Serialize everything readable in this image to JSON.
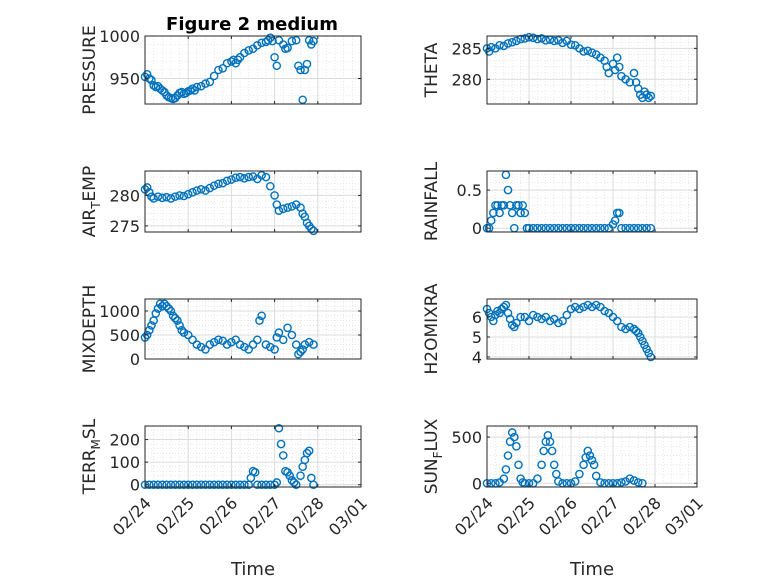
{
  "figure": {
    "title": "Figure 2 medium"
  },
  "chart_data": [
    {
      "type": "scatter",
      "panel": "top-left",
      "ylabel": "PRESSURE",
      "xlabel": "",
      "ylim": [
        920,
        1000
      ],
      "yticks": [
        950,
        1000
      ],
      "ytick_labels": [
        "950",
        "1000"
      ],
      "xlim": [
        0,
        5
      ],
      "xticks": [
        0,
        1,
        2,
        3,
        4,
        5
      ],
      "xtick_labels": [
        "02/24",
        "02/25",
        "02/26",
        "02/27",
        "02/28",
        "03/01"
      ],
      "x": [
        0,
        0.05,
        0.1,
        0.15,
        0.2,
        0.25,
        0.3,
        0.35,
        0.4,
        0.45,
        0.5,
        0.55,
        0.6,
        0.65,
        0.7,
        0.75,
        0.8,
        0.85,
        0.9,
        0.95,
        1.0,
        1.05,
        1.1,
        1.15,
        1.2,
        1.3,
        1.4,
        1.5,
        1.6,
        1.7,
        1.8,
        1.9,
        2.0,
        2.05,
        2.1,
        2.15,
        2.2,
        2.3,
        2.4,
        2.5,
        2.6,
        2.7,
        2.8,
        2.85,
        2.9,
        2.95,
        3.0,
        3.05,
        3.1,
        3.2,
        3.25,
        3.3,
        3.4,
        3.5,
        3.55,
        3.6,
        3.65,
        3.7,
        3.75,
        3.8,
        3.85,
        3.9
      ],
      "y": [
        952,
        955,
        950,
        948,
        942,
        940,
        941,
        938,
        936,
        934,
        930,
        928,
        927,
        926,
        927,
        930,
        933,
        934,
        932,
        933,
        935,
        936,
        938,
        936,
        940,
        941,
        944,
        946,
        953,
        960,
        962,
        968,
        970,
        972,
        968,
        972,
        975,
        980,
        983,
        985,
        989,
        992,
        993,
        995,
        998,
        994,
        975,
        965,
        995,
        990,
        985,
        986,
        994,
        995,
        965,
        960,
        925,
        960,
        967,
        995,
        990,
        994
      ]
    },
    {
      "type": "scatter",
      "panel": "top-right",
      "ylabel": "THETA",
      "xlabel": "",
      "ylim": [
        276,
        287
      ],
      "yticks": [
        280,
        285
      ],
      "ytick_labels": [
        "280",
        "285"
      ],
      "xlim": [
        0,
        5
      ],
      "xticks": [
        0,
        1,
        2,
        3,
        4,
        5
      ],
      "xtick_labels": [
        "02/24",
        "02/25",
        "02/26",
        "02/27",
        "02/28",
        "03/01"
      ],
      "x": [
        0,
        0.05,
        0.1,
        0.2,
        0.3,
        0.4,
        0.5,
        0.6,
        0.7,
        0.8,
        0.9,
        1.0,
        1.1,
        1.2,
        1.3,
        1.4,
        1.5,
        1.6,
        1.7,
        1.8,
        1.9,
        2.0,
        2.1,
        2.2,
        2.3,
        2.4,
        2.5,
        2.6,
        2.7,
        2.8,
        2.85,
        2.9,
        3.0,
        3.05,
        3.1,
        3.15,
        3.2,
        3.3,
        3.4,
        3.5,
        3.55,
        3.6,
        3.65,
        3.7,
        3.75,
        3.8,
        3.85,
        3.9
      ],
      "y": [
        285.0,
        284.5,
        285.2,
        285.0,
        285.5,
        285.4,
        285.8,
        286.0,
        286.2,
        286.5,
        286.6,
        286.8,
        286.7,
        286.5,
        286.6,
        286.3,
        286.4,
        286.2,
        286.3,
        285.9,
        286.2,
        285.6,
        285.5,
        285.0,
        284.5,
        284.6,
        284.3,
        284.0,
        283.5,
        283.0,
        282.0,
        281.0,
        282.5,
        281.5,
        283.5,
        282.0,
        280.5,
        280.0,
        279.5,
        281.0,
        279.5,
        278.5,
        277.5,
        277.0,
        278.0,
        277.5,
        277.0,
        277.3
      ]
    },
    {
      "type": "scatter",
      "panel": "middle-left",
      "ylabel": "AIR_TEMP",
      "xlabel": "",
      "ylim": [
        274,
        284
      ],
      "yticks": [
        275,
        280
      ],
      "ytick_labels": [
        "275",
        "280"
      ],
      "xlim": [
        0,
        5
      ],
      "xticks": [
        0,
        1,
        2,
        3,
        4,
        5
      ],
      "xtick_labels": [
        "02/24",
        "02/25",
        "02/26",
        "02/27",
        "02/28",
        "03/01"
      ],
      "x": [
        0,
        0.05,
        0.1,
        0.15,
        0.2,
        0.3,
        0.4,
        0.5,
        0.6,
        0.7,
        0.8,
        0.9,
        1.0,
        1.1,
        1.2,
        1.3,
        1.4,
        1.5,
        1.6,
        1.7,
        1.8,
        1.9,
        2.0,
        2.1,
        2.2,
        2.3,
        2.4,
        2.5,
        2.6,
        2.7,
        2.8,
        2.9,
        3.0,
        3.05,
        3.1,
        3.2,
        3.3,
        3.4,
        3.5,
        3.6,
        3.65,
        3.7,
        3.75,
        3.8,
        3.85,
        3.9
      ],
      "y": [
        281.0,
        281.3,
        280.5,
        279.8,
        279.5,
        279.8,
        279.6,
        279.7,
        279.5,
        279.8,
        280.0,
        279.9,
        280.2,
        280.5,
        280.8,
        281.0,
        280.8,
        281.2,
        281.6,
        281.9,
        282.0,
        282.4,
        282.6,
        282.9,
        283.0,
        282.8,
        283.0,
        283.1,
        282.7,
        283.3,
        283.0,
        281.5,
        280.0,
        278.5,
        277.5,
        277.8,
        278.0,
        278.2,
        278.5,
        278.0,
        277.0,
        276.5,
        275.5,
        275.0,
        274.5,
        274.2
      ]
    },
    {
      "type": "scatter",
      "panel": "middle-right",
      "ylabel": "RAINFALL",
      "xlabel": "",
      "ylim": [
        -0.05,
        0.75
      ],
      "yticks": [
        0,
        0.5
      ],
      "ytick_labels": [
        "0",
        "0.5"
      ],
      "xlim": [
        0,
        5
      ],
      "xticks": [
        0,
        1,
        2,
        3,
        4,
        5
      ],
      "xtick_labels": [
        "02/24",
        "02/25",
        "02/26",
        "02/27",
        "02/28",
        "03/01"
      ],
      "x": [
        0,
        0.05,
        0.1,
        0.15,
        0.2,
        0.25,
        0.3,
        0.35,
        0.4,
        0.45,
        0.5,
        0.55,
        0.6,
        0.65,
        0.7,
        0.75,
        0.8,
        0.85,
        0.9,
        0.95,
        1.0,
        1.1,
        1.2,
        1.3,
        1.4,
        1.5,
        1.6,
        1.7,
        1.8,
        1.9,
        2.0,
        2.1,
        2.2,
        2.3,
        2.4,
        2.5,
        2.6,
        2.7,
        2.8,
        2.9,
        3.0,
        3.05,
        3.1,
        3.15,
        3.2,
        3.3,
        3.4,
        3.5,
        3.6,
        3.7,
        3.8,
        3.9
      ],
      "y": [
        0,
        0,
        0.1,
        0.2,
        0.3,
        0.3,
        0.2,
        0.3,
        0.3,
        0.7,
        0.5,
        0.3,
        0.2,
        0,
        0.3,
        0.3,
        0.2,
        0.3,
        0.2,
        0,
        0,
        0,
        0,
        0,
        0,
        0,
        0,
        0,
        0,
        0,
        0,
        0,
        0,
        0,
        0,
        0,
        0,
        0,
        0,
        0,
        0.05,
        0.1,
        0.2,
        0.2,
        0,
        0,
        0,
        0,
        0,
        0,
        0,
        0
      ]
    },
    {
      "type": "scatter",
      "panel": "lower-left",
      "ylabel": "MIXDEPTH",
      "xlabel": "",
      "ylim": [
        0,
        1250
      ],
      "yticks": [
        0,
        500,
        1000
      ],
      "ytick_labels": [
        "0",
        "500",
        "1000"
      ],
      "xlim": [
        0,
        5
      ],
      "xticks": [
        0,
        1,
        2,
        3,
        4,
        5
      ],
      "xtick_labels": [
        "02/24",
        "02/25",
        "02/26",
        "02/27",
        "02/28",
        "03/01"
      ],
      "x": [
        0,
        0.05,
        0.1,
        0.15,
        0.2,
        0.25,
        0.3,
        0.35,
        0.4,
        0.45,
        0.5,
        0.55,
        0.6,
        0.65,
        0.7,
        0.75,
        0.8,
        0.85,
        0.9,
        1.0,
        1.1,
        1.2,
        1.3,
        1.4,
        1.5,
        1.6,
        1.7,
        1.8,
        1.9,
        2.0,
        2.1,
        2.2,
        2.3,
        2.4,
        2.5,
        2.6,
        2.65,
        2.7,
        2.8,
        2.9,
        3.0,
        3.05,
        3.1,
        3.2,
        3.3,
        3.4,
        3.5,
        3.55,
        3.6,
        3.65,
        3.7,
        3.8,
        3.9
      ],
      "y": [
        450,
        500,
        600,
        700,
        800,
        950,
        1050,
        1150,
        1100,
        1150,
        1100,
        1050,
        1000,
        900,
        850,
        800,
        700,
        600,
        550,
        500,
        400,
        300,
        250,
        200,
        300,
        350,
        400,
        380,
        300,
        350,
        400,
        300,
        250,
        200,
        300,
        400,
        800,
        900,
        300,
        250,
        200,
        450,
        550,
        400,
        650,
        500,
        300,
        100,
        150,
        200,
        300,
        350,
        300
      ]
    },
    {
      "type": "scatter",
      "panel": "lower-right",
      "ylabel": "H2OMIXRA",
      "xlabel": "",
      "ylim": [
        3.9,
        6.9
      ],
      "yticks": [
        4,
        5,
        6
      ],
      "ytick_labels": [
        "4",
        "5",
        "6"
      ],
      "xlim": [
        0,
        5
      ],
      "xticks": [
        0,
        1,
        2,
        3,
        4,
        5
      ],
      "xtick_labels": [
        "02/24",
        "02/25",
        "02/26",
        "02/27",
        "02/28",
        "03/01"
      ],
      "x": [
        0,
        0.05,
        0.1,
        0.15,
        0.2,
        0.25,
        0.3,
        0.35,
        0.4,
        0.45,
        0.5,
        0.55,
        0.6,
        0.65,
        0.7,
        0.8,
        0.9,
        1.0,
        1.1,
        1.2,
        1.3,
        1.4,
        1.5,
        1.6,
        1.7,
        1.8,
        1.9,
        2.0,
        2.1,
        2.2,
        2.3,
        2.4,
        2.5,
        2.6,
        2.7,
        2.8,
        2.9,
        3.0,
        3.1,
        3.2,
        3.3,
        3.4,
        3.5,
        3.55,
        3.6,
        3.65,
        3.7,
        3.75,
        3.8,
        3.85,
        3.9
      ],
      "y": [
        6.4,
        6.2,
        6.0,
        5.8,
        6.1,
        6.3,
        6.2,
        6.4,
        6.5,
        6.6,
        6.2,
        5.9,
        5.6,
        5.5,
        5.7,
        6.0,
        6.0,
        5.8,
        6.1,
        6.0,
        5.9,
        6.0,
        5.8,
        5.9,
        5.7,
        5.8,
        6.1,
        6.4,
        6.5,
        6.4,
        6.5,
        6.6,
        6.5,
        6.6,
        6.5,
        6.3,
        6.2,
        6.0,
        5.8,
        5.5,
        5.4,
        5.5,
        5.4,
        5.3,
        5.2,
        5.0,
        4.8,
        4.6,
        4.4,
        4.2,
        4.0
      ]
    },
    {
      "type": "scatter",
      "panel": "bottom-left",
      "ylabel": "TERR_MSL",
      "xlabel": "Time",
      "ylim": [
        -10,
        260
      ],
      "yticks": [
        0,
        100,
        200
      ],
      "ytick_labels": [
        "0",
        "100",
        "200"
      ],
      "xlim": [
        0,
        5
      ],
      "xticks": [
        0,
        1,
        2,
        3,
        4,
        5
      ],
      "xtick_labels": [
        "02/24",
        "02/25",
        "02/26",
        "02/27",
        "02/28",
        "03/01"
      ],
      "x": [
        0,
        0.1,
        0.2,
        0.3,
        0.4,
        0.5,
        0.6,
        0.7,
        0.8,
        0.9,
        1.0,
        1.1,
        1.2,
        1.3,
        1.4,
        1.5,
        1.6,
        1.7,
        1.8,
        1.9,
        2.0,
        2.1,
        2.2,
        2.3,
        2.4,
        2.45,
        2.5,
        2.55,
        2.6,
        2.7,
        2.8,
        2.9,
        3.0,
        3.05,
        3.1,
        3.15,
        3.2,
        3.25,
        3.3,
        3.35,
        3.4,
        3.45,
        3.5,
        3.6,
        3.65,
        3.7,
        3.75,
        3.8,
        3.85,
        3.9
      ],
      "y": [
        0,
        0,
        0,
        0,
        0,
        0,
        0,
        0,
        0,
        0,
        0,
        0,
        0,
        0,
        0,
        0,
        0,
        0,
        0,
        0,
        0,
        0,
        0,
        0,
        0,
        30,
        60,
        55,
        0,
        0,
        0,
        0,
        0,
        10,
        250,
        180,
        130,
        60,
        55,
        40,
        20,
        10,
        0,
        40,
        80,
        110,
        140,
        150,
        30,
        0
      ]
    },
    {
      "type": "scatter",
      "panel": "bottom-right",
      "ylabel": "SUN_FLUX",
      "xlabel": "Time",
      "ylim": [
        -40,
        620
      ],
      "yticks": [
        0,
        500
      ],
      "ytick_labels": [
        "0",
        "500"
      ],
      "xlim": [
        0,
        5
      ],
      "xticks": [
        0,
        1,
        2,
        3,
        4,
        5
      ],
      "xtick_labels": [
        "02/24",
        "02/25",
        "02/26",
        "02/27",
        "02/28",
        "03/01"
      ],
      "x": [
        0,
        0.1,
        0.2,
        0.3,
        0.4,
        0.45,
        0.5,
        0.55,
        0.6,
        0.65,
        0.7,
        0.75,
        0.8,
        0.85,
        0.9,
        1.0,
        1.1,
        1.2,
        1.3,
        1.35,
        1.4,
        1.45,
        1.5,
        1.55,
        1.6,
        1.65,
        1.7,
        1.8,
        1.9,
        2.0,
        2.1,
        2.2,
        2.3,
        2.35,
        2.4,
        2.45,
        2.5,
        2.55,
        2.6,
        2.7,
        2.8,
        2.9,
        3.0,
        3.1,
        3.2,
        3.3,
        3.4,
        3.5,
        3.6,
        3.7
      ],
      "y": [
        0,
        0,
        0,
        10,
        50,
        150,
        300,
        450,
        550,
        500,
        400,
        200,
        50,
        10,
        0,
        0,
        0,
        50,
        200,
        350,
        450,
        520,
        450,
        350,
        200,
        100,
        20,
        0,
        0,
        0,
        20,
        100,
        200,
        280,
        350,
        300,
        250,
        200,
        80,
        10,
        0,
        0,
        0,
        0,
        10,
        20,
        50,
        30,
        10,
        0
      ]
    }
  ]
}
